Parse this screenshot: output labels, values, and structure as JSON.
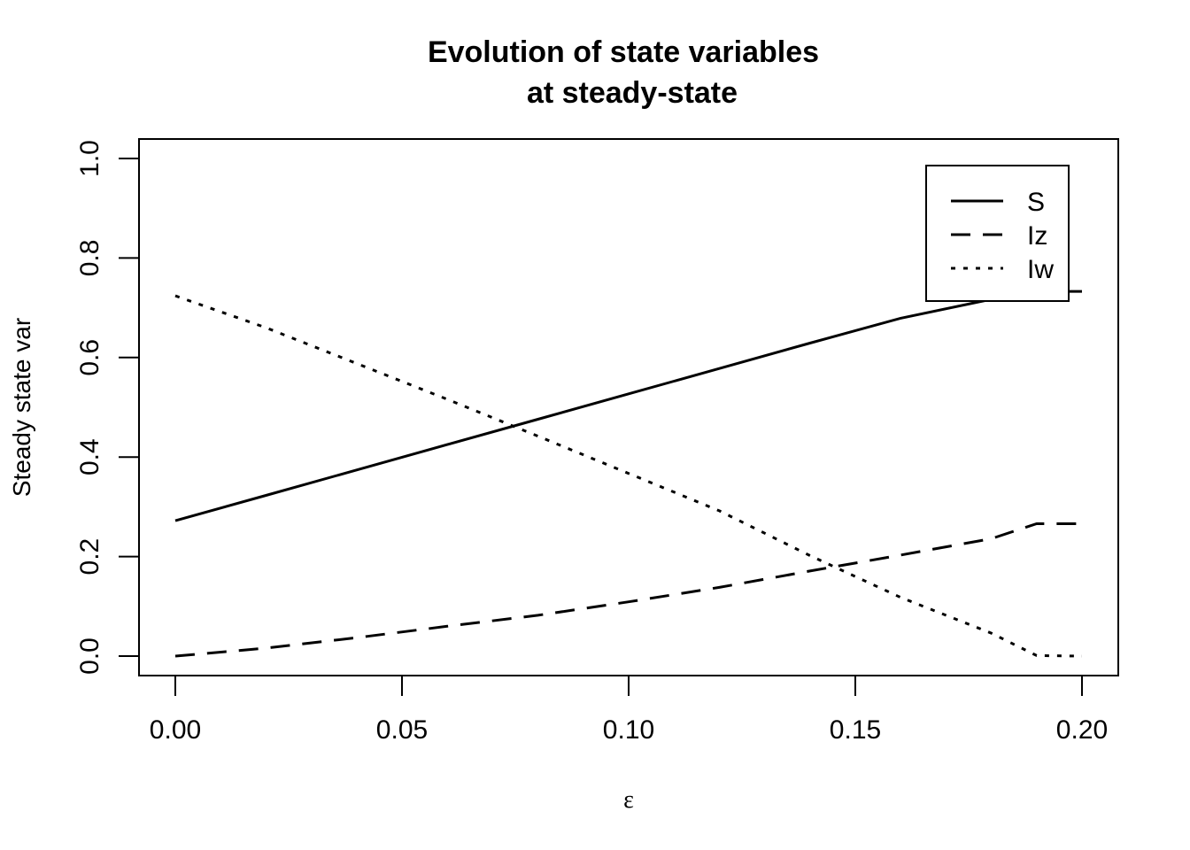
{
  "chart_data": {
    "type": "line",
    "title": "Evolution of state variables",
    "subtitle": "at steady-state",
    "xlabel": "ε",
    "ylabel": "Steady state var",
    "xlim": [
      0.0,
      0.2
    ],
    "ylim": [
      0.0,
      1.0
    ],
    "x_ticks": [
      "0.00",
      "0.05",
      "0.10",
      "0.15",
      "0.20"
    ],
    "y_ticks": [
      "0.0",
      "0.2",
      "0.4",
      "0.6",
      "0.8",
      "1.0"
    ],
    "grid": false,
    "legend_position": "top-right",
    "x": [
      0.0,
      0.02,
      0.04,
      0.06,
      0.08,
      0.1,
      0.12,
      0.14,
      0.16,
      0.18,
      0.19,
      0.2
    ],
    "series": [
      {
        "name": "S",
        "line_style": "solid",
        "values": [
          0.272,
          0.323,
          0.374,
          0.425,
          0.476,
          0.527,
          0.578,
          0.629,
          0.679,
          0.717,
          0.733,
          0.733
        ]
      },
      {
        "name": "Iz",
        "line_style": "dashed",
        "values": [
          0.0,
          0.016,
          0.037,
          0.06,
          0.082,
          0.109,
          0.138,
          0.171,
          0.203,
          0.236,
          0.266,
          0.266
        ]
      },
      {
        "name": "Iw",
        "line_style": "dotted",
        "values": [
          0.724,
          0.66,
          0.588,
          0.516,
          0.442,
          0.367,
          0.292,
          0.202,
          0.118,
          0.046,
          0.001,
          0.0
        ]
      }
    ]
  }
}
